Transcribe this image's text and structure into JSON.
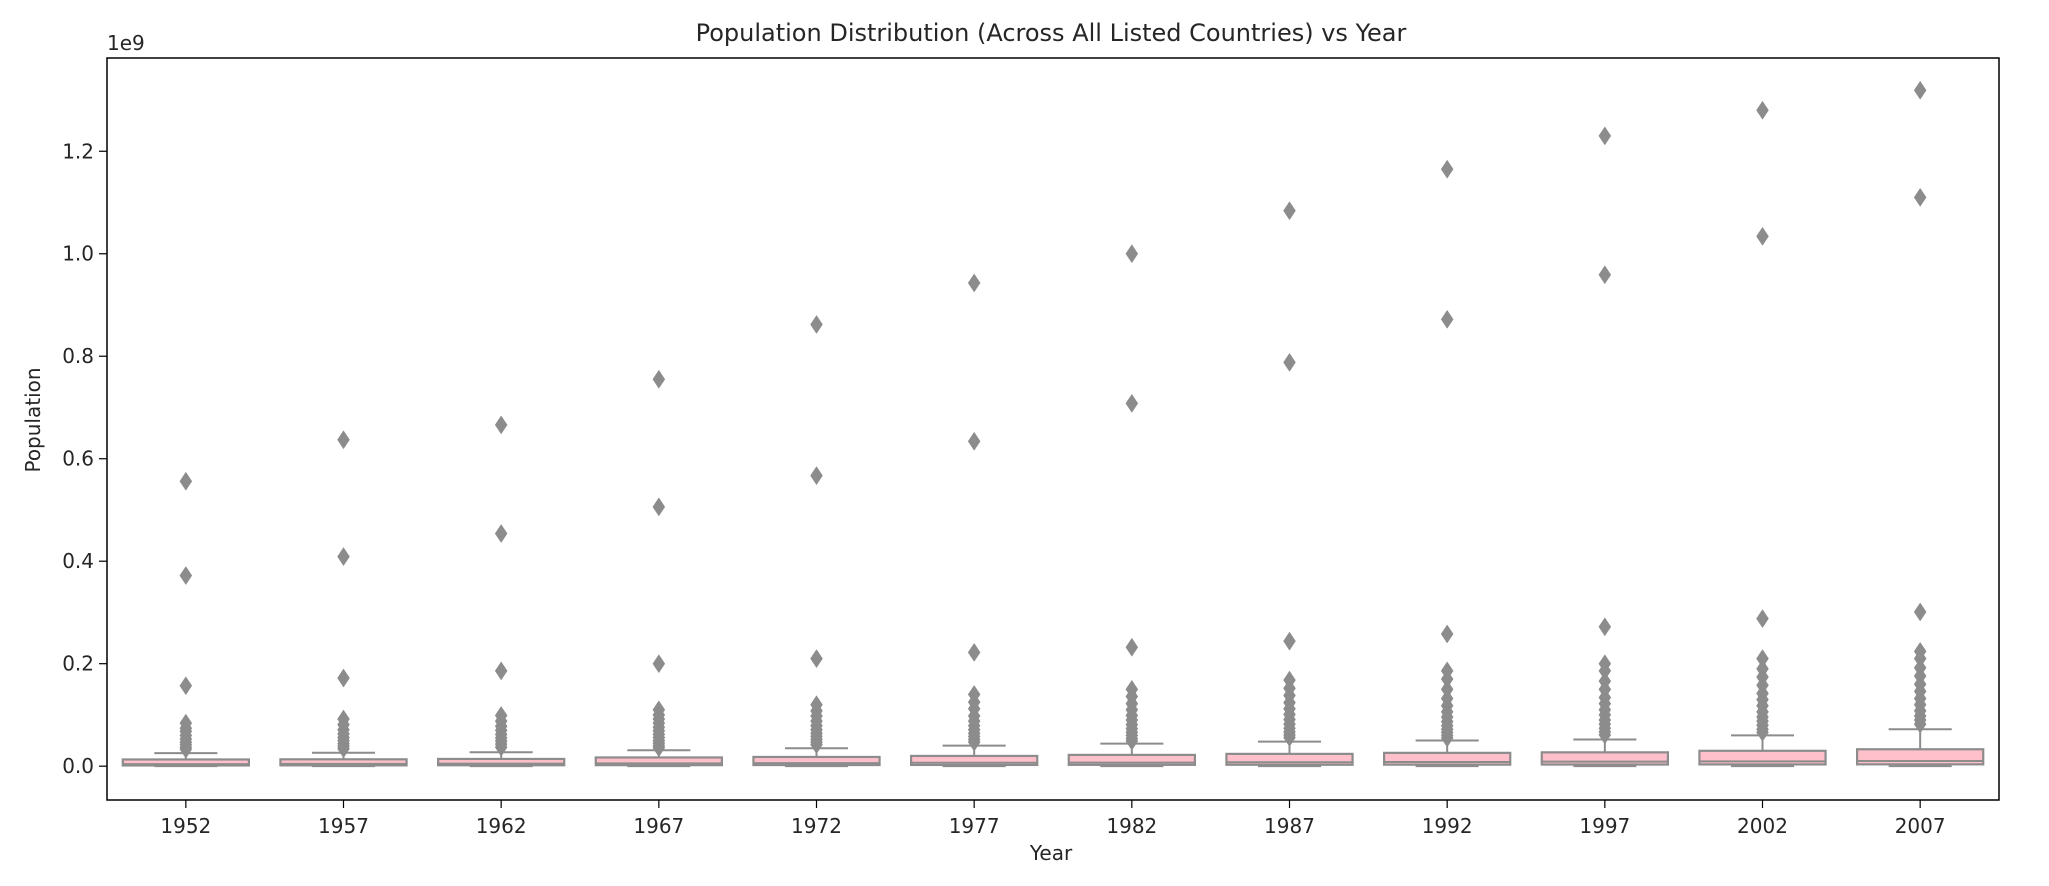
{
  "chart_data": {
    "type": "box",
    "title": "Population Distribution (Across All Listed Countries) vs Year",
    "xlabel": "Year",
    "ylabel": "Population",
    "y_offset_label": "1e9",
    "y_scale_factor": 1000000000,
    "ylim": [
      -0.066,
      1.382
    ],
    "yticks": [
      0.0,
      0.2,
      0.4,
      0.6,
      0.8,
      1.0,
      1.2
    ],
    "ytick_labels": [
      "0.0",
      "0.2",
      "0.4",
      "0.6",
      "0.8",
      "1.0",
      "1.2"
    ],
    "grid": false,
    "legend": "none",
    "colors": {
      "box_fill": "#ffc0cb",
      "line": "#8c8c8c",
      "flier": "#8c8c8c",
      "axis": "#000000"
    },
    "categories": [
      "1952",
      "1957",
      "1962",
      "1967",
      "1972",
      "1977",
      "1982",
      "1987",
      "1992",
      "1997",
      "2002",
      "2007"
    ],
    "boxes": [
      {
        "year": "1952",
        "whislo": 0.0001,
        "q1": 0.0014,
        "med": 0.004,
        "q3": 0.0122,
        "whishi": 0.0255,
        "fliers": [
          0.556,
          0.372,
          0.157,
          0.084,
          0.074,
          0.068,
          0.06,
          0.053,
          0.047,
          0.042,
          0.037,
          0.033
        ]
      },
      {
        "year": "1957",
        "whislo": 0.0001,
        "q1": 0.0016,
        "med": 0.0045,
        "q3": 0.0134,
        "whishi": 0.0262,
        "fliers": [
          0.637,
          0.409,
          0.172,
          0.092,
          0.081,
          0.071,
          0.063,
          0.056,
          0.05,
          0.044,
          0.039,
          0.034
        ]
      },
      {
        "year": "1962",
        "whislo": 0.0001,
        "q1": 0.0018,
        "med": 0.005,
        "q3": 0.0141,
        "whishi": 0.0271,
        "fliers": [
          0.666,
          0.454,
          0.186,
          0.099,
          0.088,
          0.078,
          0.07,
          0.062,
          0.055,
          0.049,
          0.043,
          0.037
        ]
      },
      {
        "year": "1967",
        "whislo": 0.0001,
        "q1": 0.002,
        "med": 0.0055,
        "q3": 0.017,
        "whishi": 0.031,
        "fliers": [
          0.755,
          0.506,
          0.2,
          0.11,
          0.1,
          0.092,
          0.084,
          0.076,
          0.069,
          0.062,
          0.056,
          0.05,
          0.045,
          0.04,
          0.036
        ]
      },
      {
        "year": "1972",
        "whislo": 0.0001,
        "q1": 0.0022,
        "med": 0.006,
        "q3": 0.018,
        "whishi": 0.035,
        "fliers": [
          0.862,
          0.567,
          0.21,
          0.12,
          0.108,
          0.098,
          0.088,
          0.079,
          0.071,
          0.064,
          0.058,
          0.052,
          0.047,
          0.042
        ]
      },
      {
        "year": "1977",
        "whislo": 0.0001,
        "q1": 0.0024,
        "med": 0.0066,
        "q3": 0.02,
        "whishi": 0.04,
        "fliers": [
          0.943,
          0.634,
          0.222,
          0.14,
          0.125,
          0.112,
          0.098,
          0.088,
          0.079,
          0.071,
          0.064,
          0.058,
          0.052,
          0.047
        ]
      },
      {
        "year": "1982",
        "whislo": 0.0001,
        "q1": 0.0026,
        "med": 0.007,
        "q3": 0.022,
        "whishi": 0.044,
        "fliers": [
          1.0,
          0.708,
          0.232,
          0.15,
          0.136,
          0.122,
          0.11,
          0.099,
          0.09,
          0.081,
          0.073,
          0.066,
          0.06,
          0.054,
          0.049
        ]
      },
      {
        "year": "1987",
        "whislo": 0.0001,
        "q1": 0.0028,
        "med": 0.0076,
        "q3": 0.024,
        "whishi": 0.048,
        "fliers": [
          1.084,
          0.788,
          0.244,
          0.168,
          0.152,
          0.138,
          0.124,
          0.112,
          0.101,
          0.091,
          0.082,
          0.074,
          0.067,
          0.061,
          0.056
        ]
      },
      {
        "year": "1992",
        "whislo": 0.0001,
        "q1": 0.003,
        "med": 0.0082,
        "q3": 0.026,
        "whishi": 0.05,
        "fliers": [
          1.165,
          0.872,
          0.258,
          0.186,
          0.17,
          0.15,
          0.132,
          0.118,
          0.106,
          0.096,
          0.087,
          0.079,
          0.072,
          0.066,
          0.06,
          0.055
        ]
      },
      {
        "year": "1997",
        "whislo": 0.0001,
        "q1": 0.0032,
        "med": 0.0088,
        "q3": 0.027,
        "whishi": 0.052,
        "fliers": [
          1.23,
          0.959,
          0.272,
          0.2,
          0.186,
          0.166,
          0.15,
          0.134,
          0.122,
          0.11,
          0.1,
          0.09,
          0.082,
          0.074,
          0.067,
          0.061
        ]
      },
      {
        "year": "2002",
        "whislo": 0.0001,
        "q1": 0.0034,
        "med": 0.0094,
        "q3": 0.03,
        "whishi": 0.06,
        "fliers": [
          1.28,
          1.034,
          0.288,
          0.21,
          0.19,
          0.174,
          0.158,
          0.142,
          0.13,
          0.118,
          0.106,
          0.096,
          0.088,
          0.08,
          0.072,
          0.066
        ]
      },
      {
        "year": "2007",
        "whislo": 0.0001,
        "q1": 0.0036,
        "med": 0.01,
        "q3": 0.033,
        "whishi": 0.072,
        "fliers": [
          1.319,
          1.11,
          0.301,
          0.224,
          0.21,
          0.192,
          0.176,
          0.16,
          0.146,
          0.132,
          0.12,
          0.108,
          0.098,
          0.09,
          0.082
        ]
      }
    ]
  }
}
